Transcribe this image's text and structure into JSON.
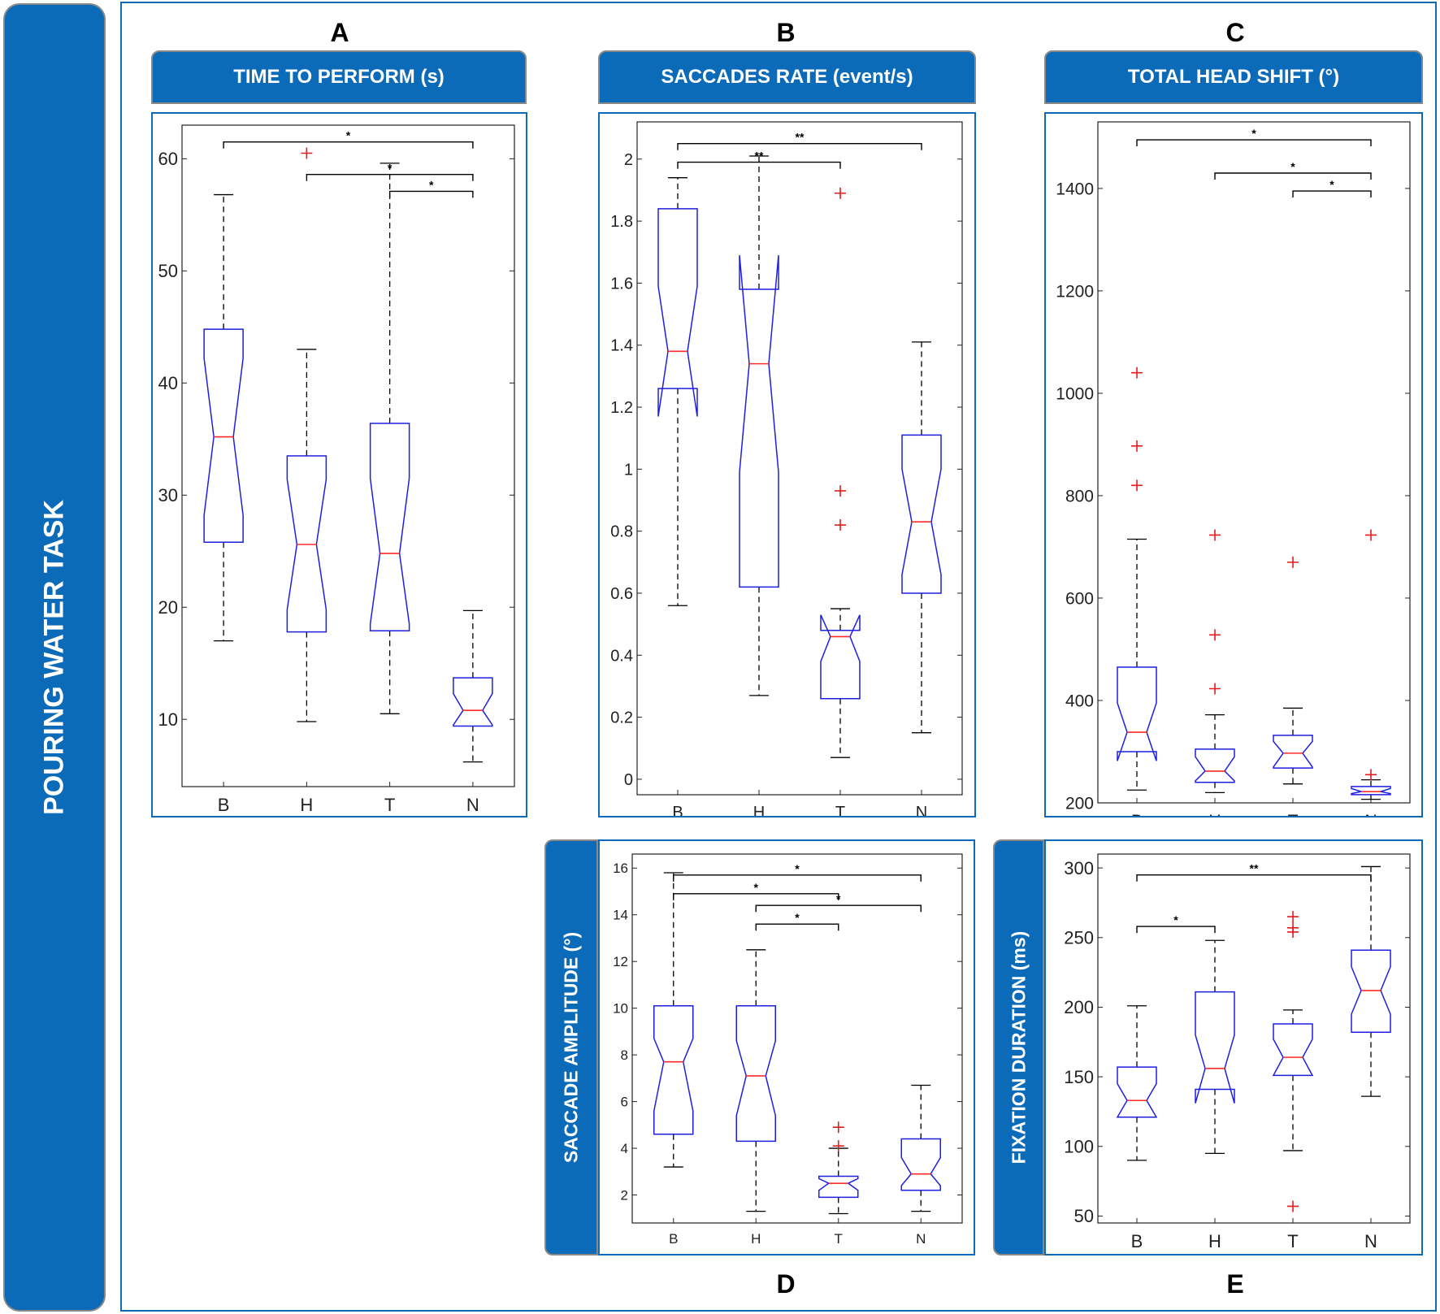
{
  "side_title": "POURING WATER TASK",
  "colors": {
    "banner": "#0b6bb8",
    "box": "#1f1fe0",
    "median": "#ff2a2a",
    "outlier": "#e21b1b",
    "whisker": "#000000"
  },
  "chart_data": [
    {
      "id": "A",
      "type": "box",
      "panel_letter": "A",
      "title": "TIME TO PERFORM (s)",
      "categories": [
        "B",
        "H",
        "T",
        "N"
      ],
      "ylim": [
        4,
        63
      ],
      "yticks": [
        10,
        20,
        30,
        40,
        50,
        60
      ],
      "boxes": [
        {
          "cat": "B",
          "min": 17,
          "q1": 25.8,
          "median": 35.2,
          "q3": 44.8,
          "max": 56.8,
          "notch_lo": 28.2,
          "notch_hi": 42.2,
          "outliers": []
        },
        {
          "cat": "H",
          "min": 9.8,
          "q1": 17.8,
          "median": 25.6,
          "q3": 33.5,
          "max": 43,
          "notch_lo": 19.8,
          "notch_hi": 31.4,
          "outliers": [
            60.5
          ]
        },
        {
          "cat": "T",
          "min": 10.5,
          "q1": 17.9,
          "median": 24.8,
          "q3": 36.4,
          "max": 59.6,
          "notch_lo": 18.5,
          "notch_hi": 31.5,
          "outliers": []
        },
        {
          "cat": "N",
          "min": 6.2,
          "q1": 9.4,
          "median": 10.8,
          "q3": 13.7,
          "max": 19.7,
          "notch_lo": 9.5,
          "notch_hi": 12.3,
          "outliers": []
        }
      ],
      "significance": [
        {
          "from": "B",
          "to": "N",
          "label": "*",
          "y": 61.5
        },
        {
          "from": "H",
          "to": "N",
          "label": "*",
          "y": 58.6
        },
        {
          "from": "T",
          "to": "N",
          "label": "*",
          "y": 57.1
        }
      ]
    },
    {
      "id": "B",
      "type": "box",
      "panel_letter": "B",
      "title": "SACCADES RATE (event/s)",
      "categories": [
        "B",
        "H",
        "T",
        "N"
      ],
      "ylim": [
        -0.05,
        2.12
      ],
      "yticks": [
        0,
        0.2,
        0.4,
        0.6,
        0.8,
        1,
        1.2,
        1.4,
        1.6,
        1.8,
        2
      ],
      "ytick_labels": [
        "0",
        "0.2",
        "0.4",
        "0.6",
        "0.8",
        "1",
        "1.2",
        "1.4",
        "1.6",
        "1.8",
        "2"
      ],
      "boxes": [
        {
          "cat": "B",
          "min": 0.56,
          "q1": 1.26,
          "median": 1.38,
          "q3": 1.84,
          "max": 1.94,
          "notch_lo": 1.17,
          "notch_hi": 1.59,
          "outliers": []
        },
        {
          "cat": "H",
          "min": 0.27,
          "q1": 0.62,
          "median": 1.34,
          "q3": 1.58,
          "max": 2.01,
          "notch_lo": 0.99,
          "notch_hi": 1.69,
          "outliers": []
        },
        {
          "cat": "T",
          "min": 0.07,
          "q1": 0.26,
          "median": 0.46,
          "q3": 0.48,
          "max": 0.55,
          "notch_lo": 0.38,
          "notch_hi": 0.53,
          "outliers": [
            0.82,
            0.93,
            1.89
          ]
        },
        {
          "cat": "N",
          "min": 0.15,
          "q1": 0.6,
          "median": 0.83,
          "q3": 1.11,
          "max": 1.41,
          "notch_lo": 0.66,
          "notch_hi": 1.0,
          "outliers": []
        }
      ],
      "significance": [
        {
          "from": "B",
          "to": "N",
          "label": "**",
          "y": 2.05
        },
        {
          "from": "B",
          "to": "T",
          "label": "**",
          "y": 1.99
        }
      ]
    },
    {
      "id": "C",
      "type": "box",
      "panel_letter": "C",
      "title": "TOTAL HEAD SHIFT (°)",
      "categories": [
        "B",
        "H",
        "T",
        "N"
      ],
      "ylim": [
        200,
        1530
      ],
      "yticks": [
        200,
        400,
        600,
        800,
        1000,
        1200,
        1400
      ],
      "boxes": [
        {
          "cat": "B",
          "min": 225,
          "q1": 300,
          "median": 338,
          "q3": 465,
          "max": 715,
          "notch_lo": 282,
          "notch_hi": 395,
          "outliers": [
            820,
            897,
            1040
          ]
        },
        {
          "cat": "H",
          "min": 220,
          "q1": 240,
          "median": 262,
          "q3": 305,
          "max": 372,
          "notch_lo": 243,
          "notch_hi": 290,
          "outliers": [
            423,
            528,
            723
          ]
        },
        {
          "cat": "T",
          "min": 237,
          "q1": 268,
          "median": 297,
          "q3": 332,
          "max": 385,
          "notch_lo": 270,
          "notch_hi": 320,
          "outliers": [
            670
          ]
        },
        {
          "cat": "N",
          "min": 207,
          "q1": 216,
          "median": 222,
          "q3": 232,
          "max": 245,
          "notch_lo": 218,
          "notch_hi": 228,
          "outliers": [
            255,
            723
          ]
        }
      ],
      "significance": [
        {
          "from": "B",
          "to": "N",
          "label": "*",
          "y": 1495
        },
        {
          "from": "H",
          "to": "N",
          "label": "*",
          "y": 1430
        },
        {
          "from": "T",
          "to": "N",
          "label": "*",
          "y": 1395
        }
      ]
    },
    {
      "id": "D",
      "type": "box",
      "panel_letter": "D",
      "title": "SACCADE AMPLITUDE (°)",
      "categories": [
        "B",
        "H",
        "T",
        "N"
      ],
      "ylim": [
        0.8,
        16.6
      ],
      "yticks": [
        2,
        4,
        6,
        8,
        10,
        12,
        14,
        16
      ],
      "boxes": [
        {
          "cat": "B",
          "min": 3.2,
          "q1": 4.6,
          "median": 7.7,
          "q3": 10.1,
          "max": 15.8,
          "notch_lo": 5.6,
          "notch_hi": 8.7,
          "outliers": []
        },
        {
          "cat": "H",
          "min": 1.3,
          "q1": 4.3,
          "median": 7.1,
          "q3": 10.1,
          "max": 12.5,
          "notch_lo": 5.4,
          "notch_hi": 8.6,
          "outliers": []
        },
        {
          "cat": "T",
          "min": 1.2,
          "q1": 1.9,
          "median": 2.5,
          "q3": 2.8,
          "max": 4.0,
          "notch_lo": 2.2,
          "notch_hi": 2.7,
          "outliers": [
            4.1,
            4.9
          ]
        },
        {
          "cat": "N",
          "min": 1.3,
          "q1": 2.2,
          "median": 2.9,
          "q3": 4.4,
          "max": 6.7,
          "notch_lo": 2.4,
          "notch_hi": 3.6,
          "outliers": []
        }
      ],
      "significance": [
        {
          "from": "B",
          "to": "N",
          "label": "*",
          "y": 15.7
        },
        {
          "from": "B",
          "to": "T",
          "label": "*",
          "y": 14.9
        },
        {
          "from": "H",
          "to": "N",
          "label": "*",
          "y": 14.4
        },
        {
          "from": "H",
          "to": "T",
          "label": "*",
          "y": 13.6
        }
      ]
    },
    {
      "id": "E",
      "type": "box",
      "panel_letter": "E",
      "title": "FIXATION DURATION (ms)",
      "categories": [
        "B",
        "H",
        "T",
        "N"
      ],
      "ylim": [
        45,
        310
      ],
      "yticks": [
        50,
        100,
        150,
        200,
        250,
        300
      ],
      "boxes": [
        {
          "cat": "B",
          "min": 90,
          "q1": 121,
          "median": 133,
          "q3": 157,
          "max": 201,
          "notch_lo": 121,
          "notch_hi": 145,
          "outliers": []
        },
        {
          "cat": "H",
          "min": 95,
          "q1": 141,
          "median": 156,
          "q3": 211,
          "max": 248,
          "notch_lo": 131,
          "notch_hi": 180,
          "outliers": []
        },
        {
          "cat": "T",
          "min": 97,
          "q1": 151,
          "median": 164,
          "q3": 188,
          "max": 198,
          "notch_lo": 151,
          "notch_hi": 177,
          "outliers": [
            57,
            254,
            257,
            265
          ]
        },
        {
          "cat": "N",
          "min": 136,
          "q1": 182,
          "median": 212,
          "q3": 241,
          "max": 301,
          "notch_lo": 195,
          "notch_hi": 229,
          "outliers": []
        }
      ],
      "significance": [
        {
          "from": "B",
          "to": "N",
          "label": "**",
          "y": 295
        },
        {
          "from": "B",
          "to": "H",
          "label": "*",
          "y": 258
        }
      ]
    }
  ]
}
